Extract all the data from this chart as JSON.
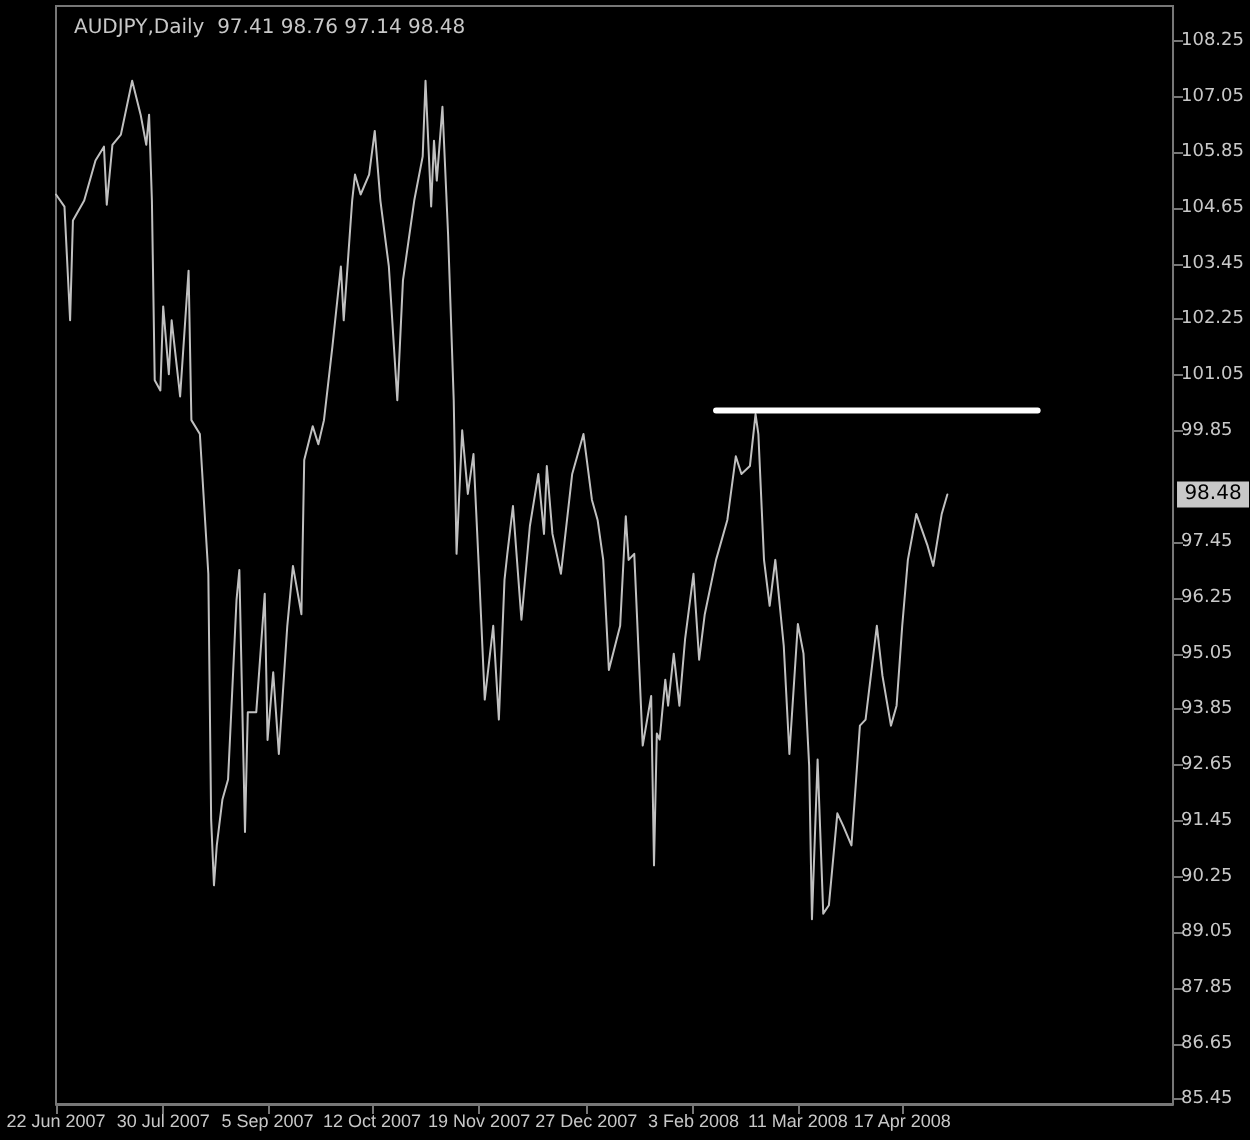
{
  "chart_data": {
    "type": "line",
    "title": "AUDJPY,Daily  97.41 98.76 97.14 98.48",
    "marker": "none",
    "x": [
      "2007-06-22",
      "2007-06-25",
      "2007-06-27",
      "2007-06-28",
      "2007-07-02",
      "2007-07-06",
      "2007-07-09",
      "2007-07-10",
      "2007-07-12",
      "2007-07-15",
      "2007-07-19",
      "2007-07-22",
      "2007-07-24",
      "2007-07-25",
      "2007-07-26",
      "2007-07-27",
      "2007-07-29",
      "2007-07-30",
      "2007-08-01",
      "2007-08-02",
      "2007-08-05",
      "2007-08-08",
      "2007-08-09",
      "2007-08-12",
      "2007-08-15",
      "2007-08-16",
      "2007-08-17",
      "2007-08-18",
      "2007-08-20",
      "2007-08-22",
      "2007-08-25",
      "2007-08-26",
      "2007-08-28",
      "2007-08-29",
      "2007-09-01",
      "2007-09-04",
      "2007-09-05",
      "2007-09-07",
      "2007-09-09",
      "2007-09-12",
      "2007-09-14",
      "2007-09-17",
      "2007-09-18",
      "2007-09-21",
      "2007-09-23",
      "2007-09-25",
      "2007-09-28",
      "2007-10-01",
      "2007-10-02",
      "2007-10-05",
      "2007-10-06",
      "2007-10-08",
      "2007-10-11",
      "2007-10-13",
      "2007-10-15",
      "2007-10-18",
      "2007-10-21",
      "2007-10-23",
      "2007-10-27",
      "2007-10-30",
      "2007-10-31",
      "2007-11-02",
      "2007-11-03",
      "2007-11-04",
      "2007-11-06",
      "2007-11-08",
      "2007-11-10",
      "2007-11-11",
      "2007-11-13",
      "2007-11-15",
      "2007-11-17",
      "2007-11-19",
      "2007-11-21",
      "2007-11-24",
      "2007-11-26",
      "2007-11-28",
      "2007-11-29",
      "2007-12-01",
      "2007-12-04",
      "2007-12-07",
      "2007-12-10",
      "2007-12-12",
      "2007-12-13",
      "2007-12-15",
      "2007-12-18",
      "2007-12-22",
      "2007-12-26",
      "2007-12-29",
      "2007-12-31",
      "2008-01-02",
      "2008-01-04",
      "2008-01-08",
      "2008-01-10",
      "2008-01-11",
      "2008-01-13",
      "2008-01-16",
      "2008-01-19",
      "2008-01-20",
      "2008-01-21",
      "2008-01-22",
      "2008-01-24",
      "2008-01-25",
      "2008-01-27",
      "2008-01-29",
      "2008-01-31",
      "2008-02-03",
      "2008-02-05",
      "2008-02-07",
      "2008-02-11",
      "2008-02-15",
      "2008-02-18",
      "2008-02-20",
      "2008-02-23",
      "2008-02-25",
      "2008-02-26",
      "2008-02-28",
      "2008-03-01",
      "2008-03-03",
      "2008-03-06",
      "2008-03-08",
      "2008-03-11",
      "2008-03-13",
      "2008-03-15",
      "2008-03-16",
      "2008-03-18",
      "2008-03-20",
      "2008-03-22",
      "2008-03-25",
      "2008-03-27",
      "2008-03-30",
      "2008-04-02",
      "2008-04-04",
      "2008-04-08",
      "2008-04-10",
      "2008-04-13",
      "2008-04-15",
      "2008-04-17",
      "2008-04-19",
      "2008-04-22",
      "2008-04-26",
      "2008-04-28",
      "2008-05-01",
      "2008-05-03"
    ],
    "series": [
      {
        "color": "#c0c0c0",
        "values": [
          104.94,
          104.68,
          102.23,
          104.38,
          104.81,
          105.67,
          105.97,
          104.72,
          106.01,
          106.23,
          107.39,
          106.66,
          106.01,
          106.66,
          104.81,
          100.94,
          100.72,
          102.53,
          101.07,
          102.23,
          100.59,
          103.3,
          100.08,
          99.78,
          96.77,
          91.48,
          90.06,
          90.92,
          91.91,
          92.34,
          96.21,
          96.85,
          91.21,
          93.79,
          93.79,
          96.34,
          93.19,
          94.65,
          92.89,
          95.65,
          96.94,
          95.9,
          99.22,
          99.95,
          99.56,
          100.08,
          101.67,
          103.39,
          102.23,
          104.81,
          105.37,
          104.94,
          105.37,
          106.31,
          104.81,
          103.39,
          100.51,
          103.09,
          104.81,
          105.76,
          107.39,
          104.68,
          106.1,
          105.24,
          106.83,
          104.08,
          100.51,
          97.2,
          99.86,
          98.49,
          99.35,
          96.77,
          94.06,
          95.65,
          93.63,
          96.64,
          97.2,
          98.23,
          95.78,
          97.8,
          98.92,
          97.63,
          99.09,
          97.63,
          96.77,
          98.92,
          99.78,
          98.36,
          97.93,
          97.07,
          94.7,
          95.65,
          98.01,
          97.07,
          97.2,
          93.07,
          94.14,
          90.49,
          93.33,
          93.2,
          94.49,
          93.93,
          95.05,
          93.93,
          95.35,
          96.77,
          94.92,
          95.9,
          97.07,
          97.93,
          99.3,
          98.92,
          99.09,
          100.21,
          99.78,
          97.07,
          96.08,
          97.07,
          95.22,
          92.89,
          95.69,
          95.05,
          92.64,
          89.33,
          92.77,
          89.45,
          89.63,
          91.61,
          91.35,
          90.92,
          93.5,
          93.63,
          95.65,
          94.57,
          93.5,
          93.93,
          95.65,
          97.07,
          98.06,
          97.37,
          96.94,
          98.06,
          98.48
        ]
      },
      {
        "color": "#ffffff",
        "x": [
          "2008-02-11",
          "2008-06-04"
        ],
        "values": [
          100.29,
          100.29
        ]
      }
    ],
    "xlim": [
      "2007-06-22",
      "2008-07-22"
    ],
    "xticks": [
      {
        "value": "2007-06-22",
        "label": "22 Jun 2007"
      },
      {
        "value": "2007-07-30",
        "label": "30 Jul 2007"
      },
      {
        "value": "2007-09-05",
        "label": "5 Sep 2007"
      },
      {
        "value": "2007-10-12",
        "label": "12 Oct 2007"
      },
      {
        "value": "2007-11-19",
        "label": "19 Nov 2007"
      },
      {
        "value": "2007-12-27",
        "label": "27 Dec 2007"
      },
      {
        "value": "2008-02-03",
        "label": "3 Feb 2008"
      },
      {
        "value": "2008-03-11",
        "label": "11 Mar 2008"
      },
      {
        "value": "2008-04-17",
        "label": "17 Apr 2008"
      }
    ],
    "ylim": [
      85.35,
      109.0
    ],
    "yticks": [
      85.45,
      86.65,
      87.85,
      89.05,
      90.25,
      91.45,
      92.65,
      93.85,
      95.05,
      96.25,
      97.45,
      99.85,
      101.05,
      102.25,
      103.45,
      104.65,
      105.85,
      107.05,
      108.25
    ],
    "annotations": [
      {
        "text": "98.48",
        "y": 98.48
      }
    ]
  }
}
